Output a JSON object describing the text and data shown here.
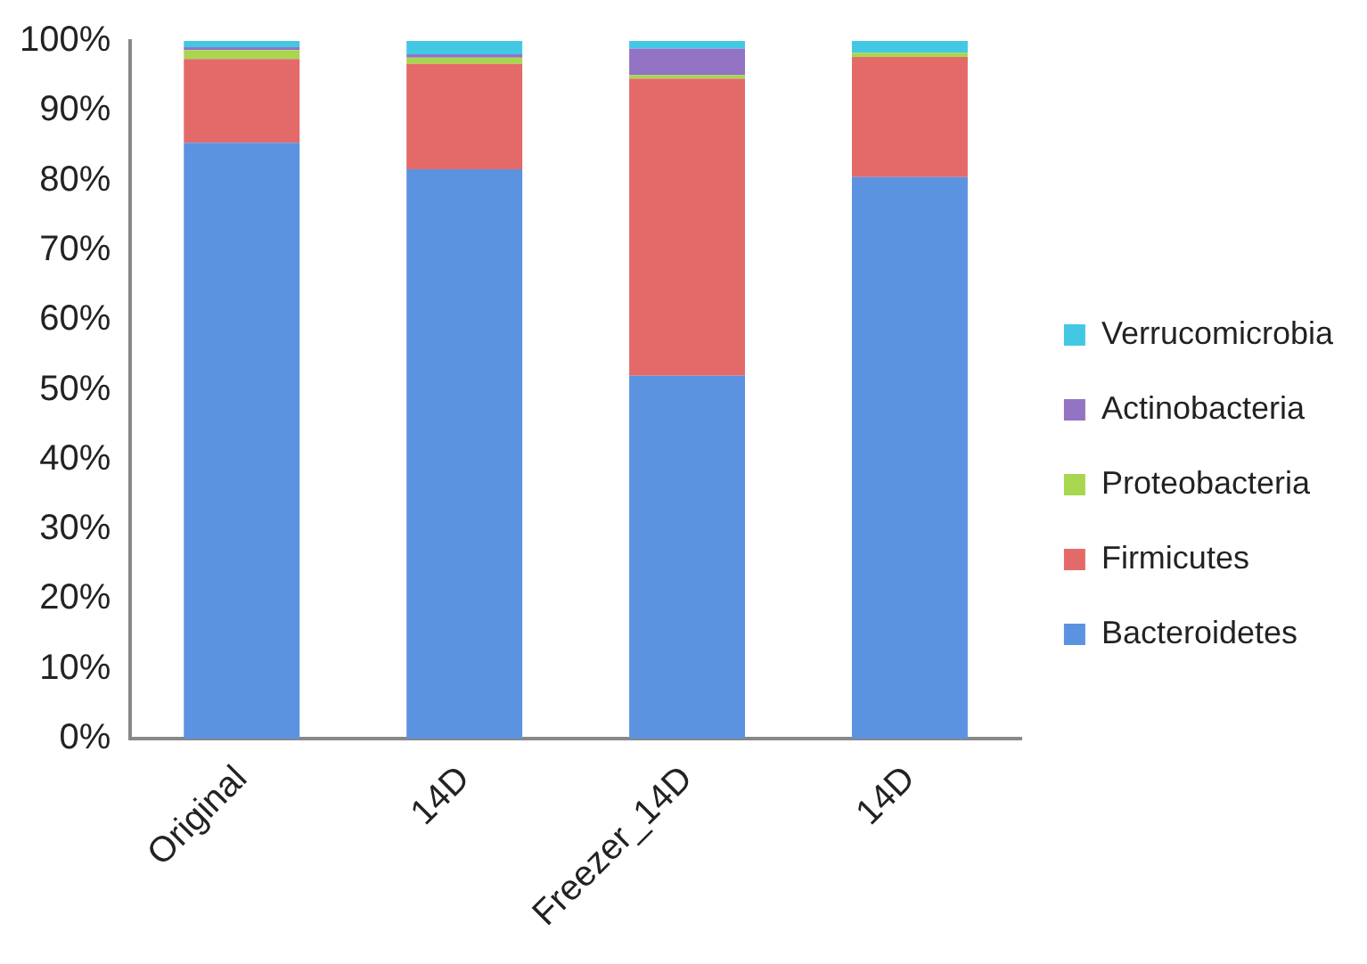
{
  "chart_data": {
    "type": "bar",
    "stacked": true,
    "categories": [
      "Original",
      "14D",
      "Freezer_14D",
      "14D"
    ],
    "series": [
      {
        "name": "Bacteroidetes",
        "color": "#5b93e0",
        "values": [
          85.4,
          81.6,
          52.0,
          80.5
        ]
      },
      {
        "name": "Firmicutes",
        "color": "#e46a6a",
        "values": [
          12.0,
          15.1,
          42.6,
          17.2
        ]
      },
      {
        "name": "Proteobacteria",
        "color": "#a8d64e",
        "values": [
          1.3,
          0.9,
          0.5,
          0.6
        ]
      },
      {
        "name": "Actinobacteria",
        "color": "#9273c4",
        "values": [
          0.4,
          0.5,
          3.8,
          null
        ]
      },
      {
        "name": "Verrucomicrobia",
        "color": "#43c8e4",
        "values": [
          0.9,
          1.9,
          1.1,
          1.7
        ]
      }
    ],
    "ylim": [
      0,
      100
    ],
    "yticks": [
      {
        "value": 0,
        "label": "0%"
      },
      {
        "value": 10,
        "label": "10%"
      },
      {
        "value": 20,
        "label": "20%"
      },
      {
        "value": 30,
        "label": "30%"
      },
      {
        "value": 40,
        "label": "40%"
      },
      {
        "value": 50,
        "label": "50%"
      },
      {
        "value": 60,
        "label": "60%"
      },
      {
        "value": 70,
        "label": "70%"
      },
      {
        "value": 80,
        "label": "80%"
      },
      {
        "value": 90,
        "label": "90%"
      },
      {
        "value": 100,
        "label": "100%"
      }
    ],
    "grid": false,
    "legend": "right"
  }
}
